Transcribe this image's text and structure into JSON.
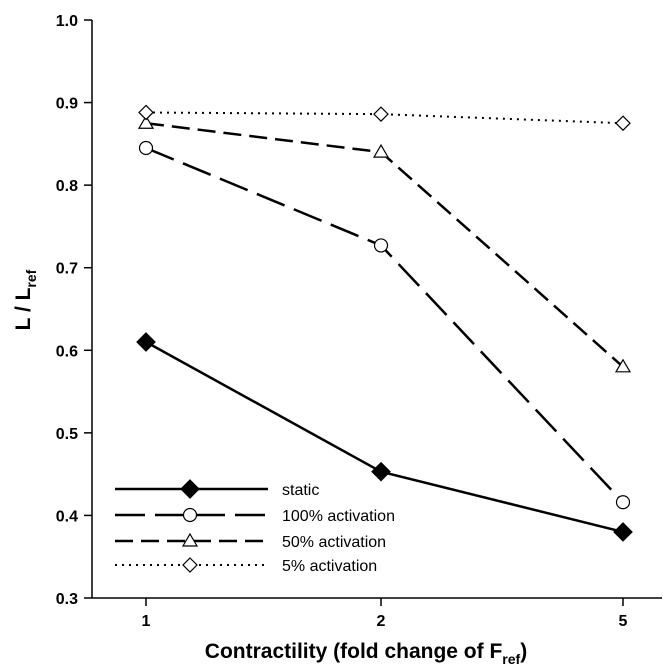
{
  "chart_data": {
    "type": "line",
    "title": "",
    "xlabel": {
      "main": "Contractility (fold change of F",
      "sub": "ref",
      "tail": ")"
    },
    "ylabel": {
      "main": "L / L",
      "sub": "ref"
    },
    "categories": [
      "1",
      "2",
      "5"
    ],
    "ylim": [
      0.3,
      1.0
    ],
    "yticks": [
      "0.3",
      "0.4",
      "0.5",
      "0.6",
      "0.7",
      "0.8",
      "0.9",
      "1.0"
    ],
    "grid": false,
    "legend_position": "bottom-left",
    "series": [
      {
        "name": "static",
        "values": [
          0.61,
          0.453,
          0.38
        ],
        "marker": "diamond-filled",
        "dash": "solid"
      },
      {
        "name": "100% activation",
        "values": [
          0.845,
          0.727,
          0.416
        ],
        "marker": "circle-open",
        "dash": "long-dash"
      },
      {
        "name": "50% activation",
        "values": [
          0.875,
          0.84,
          0.58
        ],
        "marker": "triangle-open",
        "dash": "dash"
      },
      {
        "name": "5% activation",
        "values": [
          0.888,
          0.886,
          0.875
        ],
        "marker": "diamond-open",
        "dash": "dotted"
      }
    ]
  }
}
